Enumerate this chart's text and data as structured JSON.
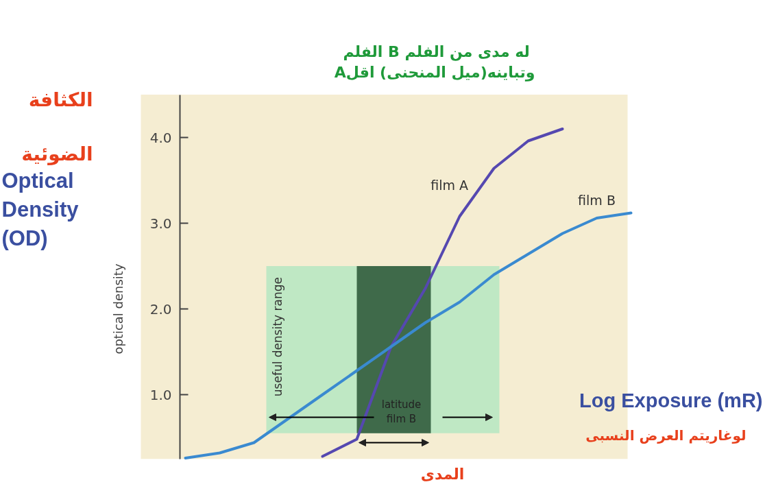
{
  "chart_data": {
    "type": "line",
    "title": "الفلم  B له مدى من الفلم\nAوتباينه(ميل المنحنى) اقل",
    "xlabel": "Log Exposure (mR)",
    "ylabel": "optical density",
    "categories": [
      null,
      null,
      null,
      null,
      null,
      null,
      null,
      null,
      null,
      null,
      null,
      null,
      null,
      null
    ],
    "series": [
      {
        "name": "film A",
        "color": "#5548b0",
        "values": [
          null,
          null,
          null,
          null,
          0.28,
          0.48,
          1.56,
          2.24,
          3.08,
          3.64,
          3.96,
          4.1,
          null,
          null
        ]
      },
      {
        "name": "film B",
        "color": "#3a8ad0",
        "values": [
          0.26,
          0.32,
          0.44,
          0.72,
          1.0,
          1.28,
          1.56,
          1.84,
          2.08,
          2.4,
          2.64,
          2.88,
          3.06,
          3.12
        ]
      }
    ],
    "ylim": [
      0.25,
      4.5
    ],
    "yticks": [
      {
        "value": 1,
        "label": "1.0"
      },
      {
        "value": 2,
        "label": "2.0"
      },
      {
        "value": 3,
        "label": "3.0"
      },
      {
        "value": 4,
        "label": "4.0"
      }
    ],
    "tick_labels": "y",
    "grid": false,
    "bands": [
      {
        "axis": "y",
        "from": 0.55,
        "to": 2.5,
        "label": "useful density range",
        "color": "#bfe8c4"
      },
      {
        "axis": "y",
        "from": 0.55,
        "to": 2.5,
        "label": "latitude film B",
        "color": "#3f6a4a"
      }
    ],
    "annotations": [
      "الكثافة الضوئية",
      "Optical Density (OD)",
      "لوغاريتم العرض النسبى",
      "المدى"
    ]
  }
}
